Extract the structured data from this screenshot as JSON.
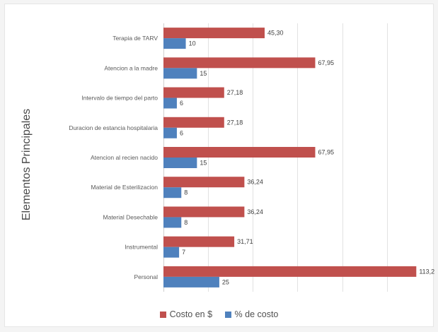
{
  "chart_data": {
    "type": "bar",
    "orientation": "horizontal",
    "title": "",
    "xlabel": "",
    "ylabel": "Elementos Principales",
    "categories": [
      "Terapia de TARV",
      "Atencion a la madre",
      "Intervalo de tiempo del parto",
      "Duracion de estancia hospitalaria",
      "Atencion al recien nacido",
      "Material de Esterilizacion",
      "Material Desechable",
      "Instrumental",
      "Personal"
    ],
    "series": [
      {
        "name": "Costo en $",
        "color": "#c0504d",
        "values": [
          45.3,
          67.95,
          27.18,
          27.18,
          67.95,
          36.24,
          36.24,
          31.71,
          113.2
        ],
        "labels": [
          "45,30",
          "67,95",
          "27,18",
          "27,18",
          "67,95",
          "36,24",
          "36,24",
          "31,71",
          "113,2"
        ]
      },
      {
        "name": "% de costo",
        "color": "#4f81bd",
        "values": [
          10,
          15,
          6,
          6,
          15,
          8,
          8,
          7,
          25
        ],
        "labels": [
          "10",
          "15",
          "6",
          "6",
          "15",
          "8",
          "8",
          "7",
          "25"
        ]
      }
    ],
    "xlim": [
      0,
      115
    ],
    "grid": true,
    "legend_position": "bottom"
  }
}
